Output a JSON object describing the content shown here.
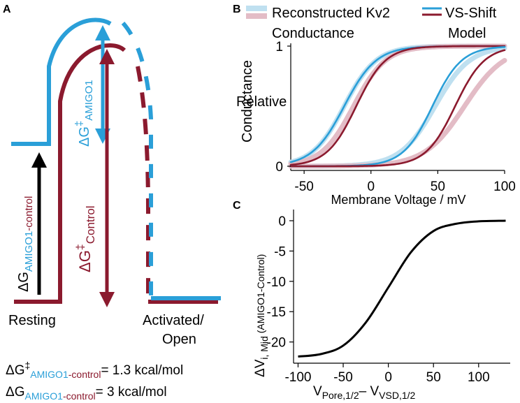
{
  "colors": {
    "amigo1": "#2a9fd8",
    "control": "#8b1a2e",
    "amigo1_light": "#bfe0f0",
    "control_light": "#e3bcc6",
    "black": "#000000"
  },
  "panel_a": {
    "label": "A",
    "resting_label": "Resting",
    "activated_label_line1": "Activated/",
    "activated_label_line2": "Open",
    "dg_amigo_ts": {
      "delta": "ΔG",
      "ddag": "‡",
      "sub": "AMIGO1"
    },
    "dg_control_ts": {
      "delta": "ΔG",
      "ddag": "‡",
      "sub": "Control"
    },
    "dg_resting": {
      "delta": "ΔG",
      "sub_a": "AMIGO1",
      "sub_b": "-control"
    },
    "eq1": {
      "delta": "ΔG",
      "ddag": "‡",
      "sub_a": "AMIGO1",
      "sub_b": "-control",
      "value": "= 1.3 kcal/mol"
    },
    "eq2": {
      "delta": "ΔG",
      "sub_a": "AMIGO1",
      "sub_b": "-control",
      "value": "= 3 kcal/mol"
    }
  },
  "panel_b": {
    "label": "B",
    "legend_recon_line1": "Reconstructed Kv2",
    "legend_recon_line2": "Conductance",
    "legend_model_line1": "VS-Shift",
    "legend_model_line2": "Model",
    "ylabel_line1": "Relative",
    "ylabel_line2": "Conductance",
    "xlabel": "Membrane Voltage / mV",
    "xticks": [
      "-50",
      "0",
      "50",
      "100"
    ],
    "yticks": [
      "0",
      "1"
    ]
  },
  "panel_c": {
    "label": "C",
    "ylabel_main": "ΔV",
    "ylabel_sub": "i, Mid",
    "ylabel_paren": " (AMIGO1-Control)",
    "xlabel_v1": "V",
    "xlabel_s1": "Pore,1/2",
    "xlabel_mid": "– V",
    "xlabel_s2": "VSD,1/2",
    "xticks": [
      "-100",
      "-50",
      "0",
      "50",
      "100"
    ],
    "yticks": [
      "0",
      "-5",
      "-10",
      "-15",
      "-20"
    ]
  },
  "chart_data": [
    {
      "type": "line",
      "title": "",
      "xlabel": "Membrane Voltage / mV",
      "ylabel": "Relative Conductance",
      "xlim": [
        -60,
        100
      ],
      "ylim": [
        0,
        1
      ],
      "series": [
        {
          "name": "Reconstructed Kv2 Conductance (AMIGO1, left)",
          "role": "recon",
          "group": "amigo1",
          "v_half": -20,
          "slope": 12
        },
        {
          "name": "Reconstructed Kv2 Conductance (control, left)",
          "role": "recon",
          "group": "control",
          "v_half": -13,
          "slope": 12
        },
        {
          "name": "Reconstructed Kv2 Conductance (AMIGO1, right)",
          "role": "recon",
          "group": "amigo1",
          "v_half": 48,
          "slope": 13
        },
        {
          "name": "Reconstructed Kv2 Conductance (control, right)",
          "role": "recon",
          "group": "control",
          "v_half": 70,
          "slope": 15
        },
        {
          "name": "VS-Shift Model (AMIGO1, left)",
          "role": "model",
          "group": "amigo1",
          "v_half": -20,
          "slope": 12
        },
        {
          "name": "VS-Shift Model (control, left)",
          "role": "model",
          "group": "control",
          "v_half": -11,
          "slope": 11
        },
        {
          "name": "VS-Shift Model (AMIGO1, right)",
          "role": "model",
          "group": "amigo1",
          "v_half": 46,
          "slope": 11
        },
        {
          "name": "VS-Shift Model (control, right)",
          "role": "model",
          "group": "control",
          "v_half": 63,
          "slope": 11
        }
      ]
    },
    {
      "type": "line",
      "title": "",
      "xlabel": "V Pore,1/2 – V VSD,1/2",
      "ylabel": "ΔV i,Mid (AMIGO1-Control)",
      "xlim": [
        -105,
        135
      ],
      "ylim": [
        -23.5,
        1.5
      ],
      "series": [
        {
          "name": "ΔV i,Mid",
          "x": [
            -100,
            -75,
            -50,
            -25,
            0,
            25,
            50,
            75,
            100,
            130
          ],
          "y": [
            -22.4,
            -22.0,
            -20.6,
            -16.8,
            -11.0,
            -5.2,
            -1.7,
            -0.5,
            -0.1,
            0.0
          ]
        }
      ]
    }
  ]
}
